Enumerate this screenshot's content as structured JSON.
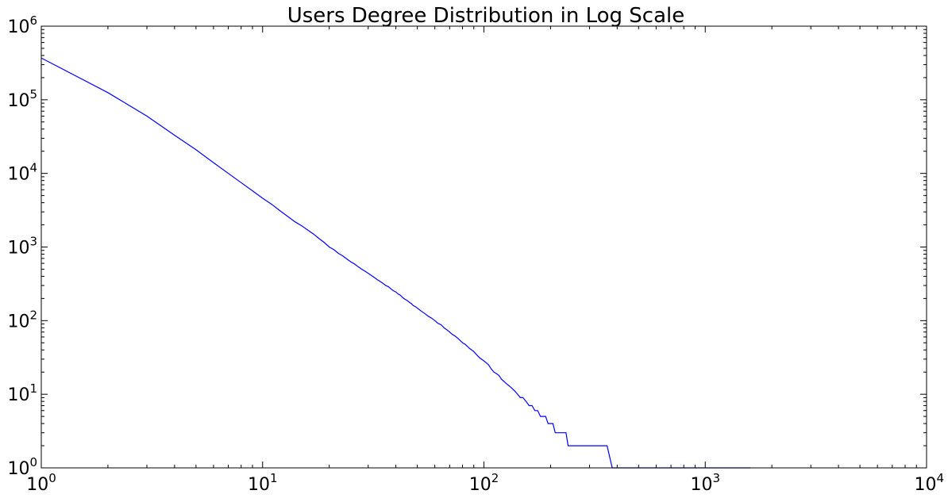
{
  "chart_data": {
    "type": "line",
    "title": "Users Degree Distribution in Log Scale",
    "xlabel": "",
    "ylabel": "",
    "xscale": "log",
    "yscale": "log",
    "xlim": [
      1,
      10000
    ],
    "ylim": [
      1,
      1000000
    ],
    "grid": false,
    "legend": "none",
    "x_ticks": [
      {
        "base": "10",
        "exp": "0",
        "value": 1
      },
      {
        "base": "10",
        "exp": "1",
        "value": 10
      },
      {
        "base": "10",
        "exp": "2",
        "value": 100
      },
      {
        "base": "10",
        "exp": "3",
        "value": 1000
      },
      {
        "base": "10",
        "exp": "4",
        "value": 10000
      }
    ],
    "y_ticks": [
      {
        "base": "10",
        "exp": "0",
        "value": 1
      },
      {
        "base": "10",
        "exp": "1",
        "value": 10
      },
      {
        "base": "10",
        "exp": "2",
        "value": 100
      },
      {
        "base": "10",
        "exp": "3",
        "value": 1000
      },
      {
        "base": "10",
        "exp": "4",
        "value": 10000
      },
      {
        "base": "10",
        "exp": "5",
        "value": 100000
      },
      {
        "base": "10",
        "exp": "6",
        "value": 1000000
      }
    ],
    "series": [
      {
        "color": "#0000ff",
        "x": [
          1,
          2,
          3,
          4,
          5,
          6,
          7,
          8,
          9,
          10,
          11,
          12,
          13,
          14,
          15,
          16,
          17,
          18,
          19,
          20,
          21,
          22,
          23,
          24,
          25,
          26,
          27,
          28,
          29,
          30,
          31,
          32,
          33,
          34,
          35,
          36,
          37,
          38,
          39,
          40,
          41,
          42,
          43,
          44,
          45,
          46,
          47,
          48,
          49,
          50,
          52,
          54,
          56,
          58,
          60,
          62,
          64,
          66,
          68,
          70,
          72,
          74,
          76,
          78,
          80,
          82,
          84,
          86,
          88,
          90,
          93,
          96,
          99,
          102,
          105,
          108,
          111,
          114,
          117,
          120,
          123,
          126,
          130,
          134,
          138,
          142,
          146,
          150,
          155,
          160,
          165,
          170,
          175,
          180,
          185,
          190,
          195,
          200,
          205,
          210,
          215,
          220,
          225,
          230,
          235,
          240,
          245,
          250,
          255,
          260,
          265,
          270,
          280,
          290,
          300,
          310,
          320,
          330,
          340,
          350,
          360,
          380,
          400,
          420,
          440,
          460,
          480,
          500,
          520,
          540,
          560,
          580,
          600,
          650,
          700,
          800,
          900,
          1000,
          1200,
          1400,
          1600
        ],
        "y": [
          370000,
          125000,
          60000,
          33000,
          21000,
          14000,
          10000,
          7500,
          5800,
          4600,
          3800,
          3100,
          2600,
          2200,
          1950,
          1700,
          1500,
          1300,
          1150,
          1000,
          920,
          820,
          760,
          690,
          630,
          590,
          540,
          500,
          470,
          440,
          410,
          385,
          360,
          340,
          320,
          300,
          290,
          270,
          255,
          245,
          230,
          220,
          205,
          195,
          188,
          178,
          170,
          160,
          155,
          148,
          135,
          125,
          115,
          108,
          100,
          92,
          88,
          80,
          75,
          70,
          65,
          62,
          58,
          54,
          50,
          48,
          45,
          42,
          40,
          38,
          34,
          31,
          29,
          27,
          25,
          22,
          20,
          19,
          18,
          16,
          15,
          14,
          13,
          12,
          11,
          10,
          9,
          9,
          8,
          7,
          7,
          6,
          6,
          5,
          5,
          5,
          4,
          4,
          4,
          3,
          3,
          3,
          3,
          3,
          3,
          2,
          2,
          2,
          2,
          2,
          2,
          2,
          2,
          2,
          2,
          2,
          2,
          2,
          2,
          2,
          2,
          1,
          1,
          1,
          1,
          1,
          1,
          1,
          1,
          1,
          1,
          1,
          1,
          1,
          1,
          1,
          1,
          1,
          1,
          1,
          1
        ]
      }
    ]
  }
}
